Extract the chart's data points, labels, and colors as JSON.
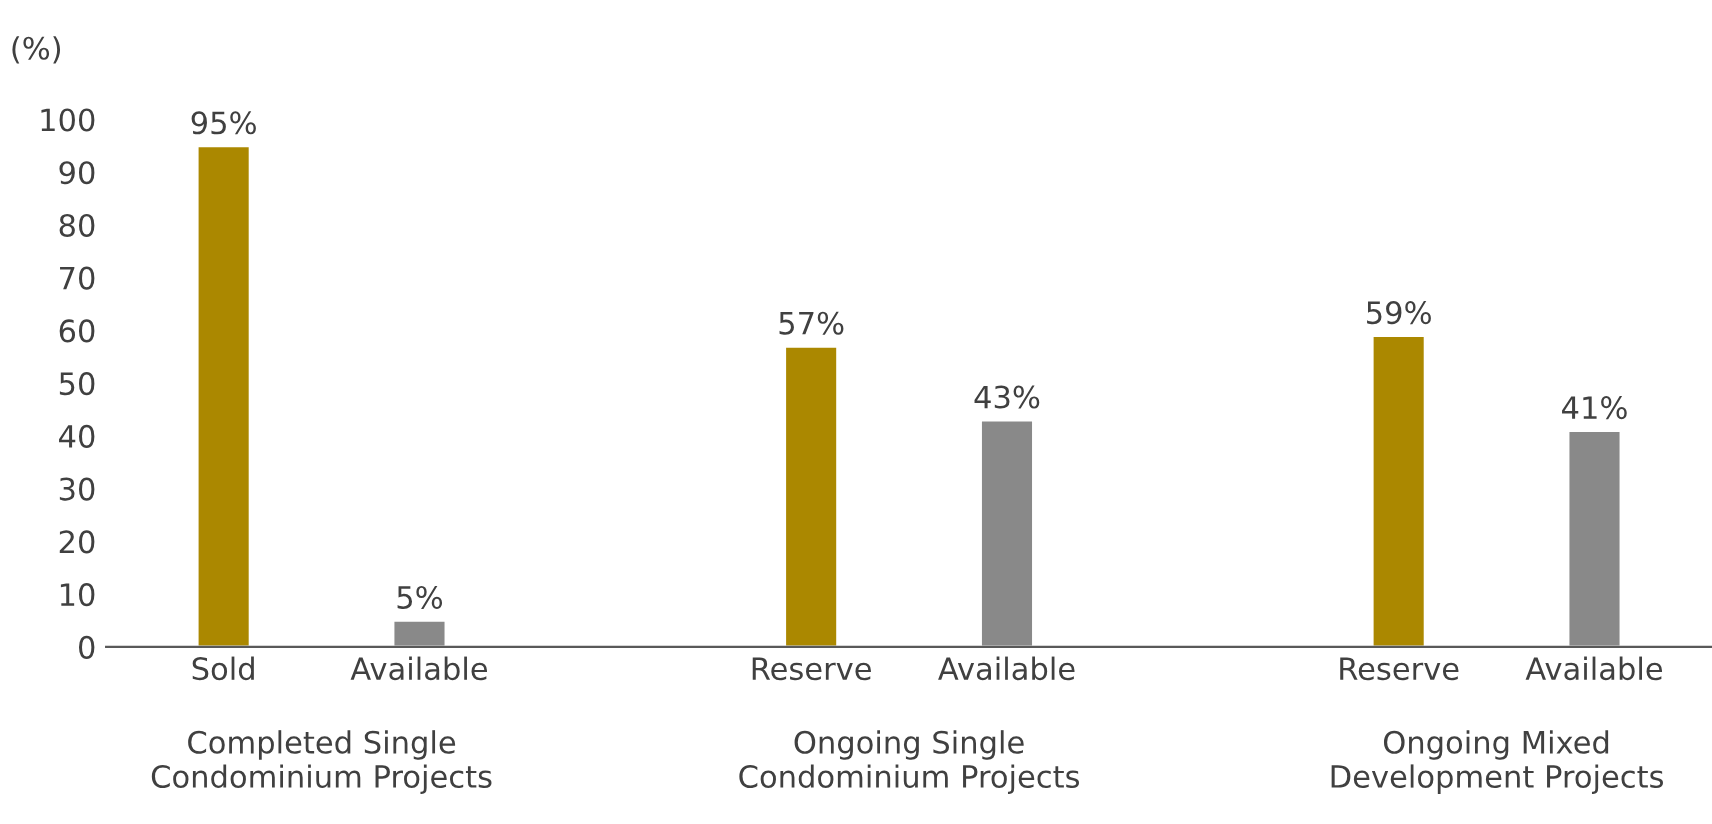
{
  "chart_data": {
    "type": "bar",
    "ylabel": "(%)",
    "categories": [
      "Sold",
      "Available",
      null,
      "Reserve",
      "Available",
      null,
      "Reserve",
      "Available"
    ],
    "values": [
      95,
      5,
      null,
      57,
      43,
      null,
      59,
      41
    ],
    "colors": [
      "#ab8800",
      "#898989",
      null,
      "#ab8800",
      "#898989",
      null,
      "#ab8800",
      "#898989"
    ],
    "value_labels": [
      "95%",
      "5%",
      null,
      "57%",
      "43%",
      null,
      "59%",
      "41%"
    ],
    "ylim": [
      0,
      100
    ],
    "yticks": [
      0,
      10,
      20,
      30,
      40,
      50,
      60,
      70,
      80,
      90,
      100
    ],
    "grid": false,
    "legend": false,
    "annotations": [
      "Completed Single\nCondominium Projects",
      "Ongoing Single\nCondominium Projects",
      "Ongoing Mixed\nDevelopment Projects"
    ]
  }
}
